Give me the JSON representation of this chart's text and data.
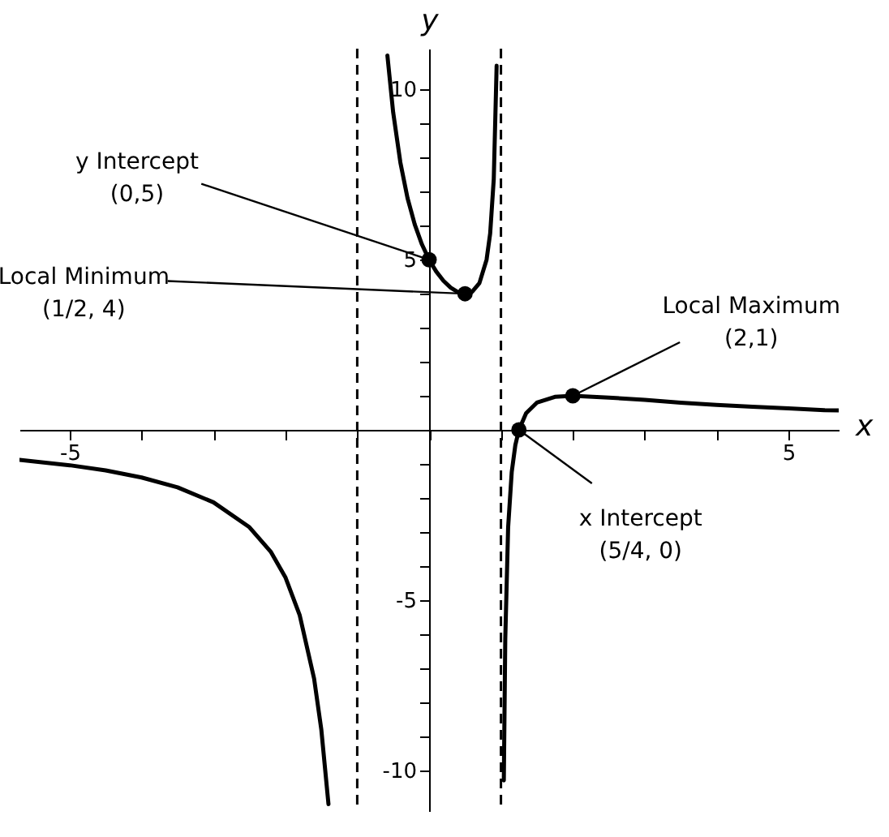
{
  "chart_data": {
    "type": "line",
    "xlabel": "x",
    "ylabel": "y",
    "xlim": [
      -5.7,
      5.7
    ],
    "ylim": [
      -11.2,
      11.2
    ],
    "xticks": [
      -5,
      {
        "value": -4,
        "label": null
      },
      {
        "value": -3,
        "label": null
      },
      {
        "value": -2,
        "label": null
      },
      {
        "value": -1,
        "label": null
      },
      {
        "value": 0,
        "label": null
      },
      {
        "value": 1,
        "label": null
      },
      {
        "value": 2,
        "label": null
      },
      {
        "value": 3,
        "label": null
      },
      {
        "value": 4,
        "label": null
      },
      5
    ],
    "yticks": [
      -10,
      {
        "value": -9,
        "label": null
      },
      {
        "value": -8,
        "label": null
      },
      {
        "value": -7,
        "label": null
      },
      {
        "value": -6,
        "label": null
      },
      -5,
      {
        "value": -4,
        "label": null
      },
      {
        "value": -3,
        "label": null
      },
      {
        "value": -2,
        "label": null
      },
      {
        "value": -1,
        "label": null
      },
      {
        "value": 0,
        "label": null
      },
      {
        "value": 1,
        "label": null
      },
      {
        "value": 2,
        "label": null
      },
      {
        "value": 3,
        "label": null
      },
      {
        "value": 4,
        "label": null
      },
      5,
      {
        "value": 6,
        "label": null
      },
      {
        "value": 7,
        "label": null
      },
      {
        "value": 8,
        "label": null
      },
      {
        "value": 9,
        "label": null
      },
      10
    ],
    "grid": false,
    "series": [
      {
        "color": "#000000",
        "x": [
          -5.7,
          -5,
          -4.5,
          -4,
          -3.5,
          -3,
          -2.5,
          -2.2,
          -2,
          -1.8,
          -1.6,
          -1.5,
          -1.4
        ],
        "values": [
          -0.88,
          -1.04,
          -1.19,
          -1.4,
          -1.69,
          -2.13,
          -2.86,
          -3.59,
          -4.33,
          -5.45,
          -7.31,
          -8.8,
          -11.0
        ]
      },
      {
        "color": "#000000",
        "x": [
          -0.58,
          -0.5,
          -0.4,
          -0.3,
          -0.2,
          -0.1,
          0,
          0.1,
          0.2,
          0.3,
          0.4,
          0.5,
          0.6,
          0.7,
          0.8,
          0.85,
          0.9,
          0.94
        ],
        "values": [
          11.0,
          9.33,
          7.86,
          6.81,
          6.04,
          5.45,
          5,
          4.65,
          4.38,
          4.18,
          4.05,
          4,
          4.06,
          4.31,
          5,
          5.77,
          7.37,
          10.7
        ]
      },
      {
        "color": "#000000",
        "x": [
          1.04,
          1.06,
          1.1,
          1.15,
          1.2,
          1.25,
          1.35,
          1.5,
          1.75,
          2,
          2.5,
          3,
          3.5,
          4,
          4.5,
          5,
          5.5,
          5.7
        ],
        "values": [
          -10.3,
          -6.15,
          -2.86,
          -1.24,
          -0.45,
          0,
          0.49,
          0.8,
          0.97,
          1,
          0.95,
          0.88,
          0.8,
          0.73,
          0.68,
          0.63,
          0.58,
          0.57
        ]
      },
      {
        "type": "scatter",
        "color": "#000000",
        "marker": "circle",
        "x": [
          0,
          0.5,
          2,
          1.25
        ],
        "values": [
          5,
          4,
          1,
          0
        ]
      }
    ],
    "ref_lines": [
      {
        "axis": "x",
        "value": -1,
        "color": "#000000",
        "line_style": "dashed"
      },
      {
        "axis": "x",
        "value": 1,
        "color": "#000000",
        "line_style": "dashed"
      }
    ],
    "annotations": [
      {
        "text": "y Intercept\n(0,5)",
        "x": 0,
        "y": 5
      },
      {
        "text": "Local Minimum\n(1/2, 4)",
        "x": 0.5,
        "y": 4
      },
      {
        "text": "Local Maximum\n(2,1)",
        "x": 2,
        "y": 1
      },
      {
        "text": "x Intercept\n(5/4, 0)",
        "x": 1.25,
        "y": 0
      }
    ]
  }
}
